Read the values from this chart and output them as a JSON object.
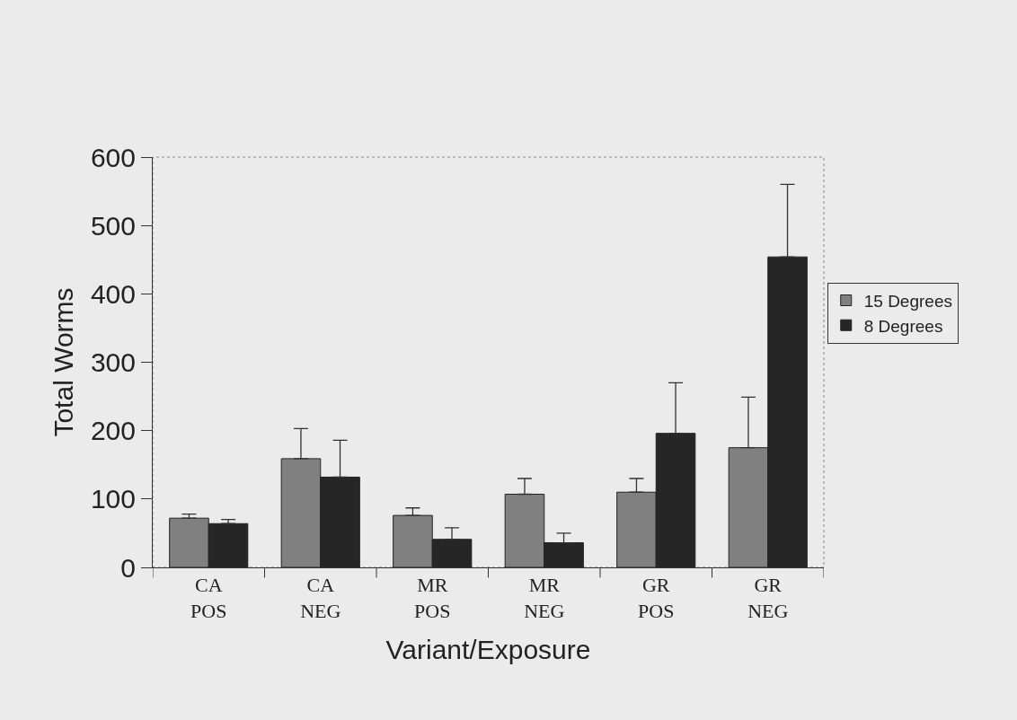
{
  "chart_data": {
    "type": "bar",
    "xlabel": "Variant/Exposure",
    "ylabel": "Total Worms",
    "categories": [
      "CA\nPOS",
      "CA\nNEG",
      "MR\nPOS",
      "MR\nNEG",
      "GR\nPOS",
      "GR\nNEG"
    ],
    "series": [
      {
        "name": "15 Degrees",
        "color": "#808080",
        "values": [
          72,
          159,
          76,
          107,
          110,
          175
        ],
        "errors": [
          [
            72,
            78
          ],
          [
            159,
            203
          ],
          [
            76,
            87
          ],
          [
            107,
            130
          ],
          [
            110,
            130
          ],
          [
            175,
            249
          ]
        ]
      },
      {
        "name": "8 Degrees",
        "color": "#262626",
        "values": [
          64,
          132,
          41,
          36,
          196,
          454
        ],
        "errors": [
          [
            64,
            70
          ],
          [
            132,
            186
          ],
          [
            41,
            58
          ],
          [
            36,
            50
          ],
          [
            196,
            270
          ],
          [
            454,
            560
          ]
        ]
      }
    ],
    "ylim": [
      0,
      600
    ],
    "yticks": [
      0,
      100,
      200,
      300,
      400,
      500,
      600
    ],
    "grid": false,
    "legend": "right"
  }
}
